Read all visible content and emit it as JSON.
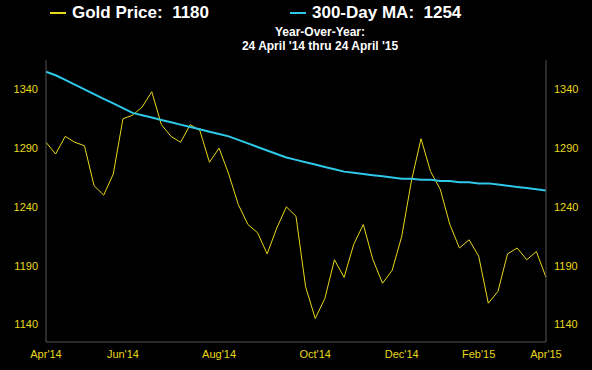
{
  "chart_data": {
    "type": "line",
    "subtitle": [
      "Year-Over-Year:",
      "24 April '14 thru 24 April '15"
    ],
    "categories": [
      "Apr'14",
      null,
      null,
      null,
      null,
      null,
      null,
      null,
      "Jun'14",
      null,
      null,
      null,
      null,
      null,
      null,
      null,
      null,
      null,
      "Aug'14",
      null,
      null,
      null,
      null,
      null,
      null,
      null,
      null,
      null,
      "Oct'14",
      null,
      null,
      null,
      null,
      null,
      null,
      null,
      null,
      "Dec'14",
      null,
      null,
      null,
      null,
      null,
      null,
      null,
      "Feb'15",
      null,
      null,
      null,
      null,
      null,
      null,
      "Apr'15"
    ],
    "series": [
      {
        "name": "Gold Price",
        "color": "#e8d81a",
        "values": [
          1295,
          1285,
          1300,
          1295,
          1292,
          1258,
          1250,
          1268,
          1315,
          1318,
          1325,
          1338,
          1310,
          1300,
          1295,
          1310,
          1305,
          1278,
          1290,
          1268,
          1242,
          1225,
          1218,
          1200,
          1222,
          1240,
          1232,
          1172,
          1145,
          1162,
          1195,
          1180,
          1208,
          1225,
          1195,
          1175,
          1186,
          1215,
          1262,
          1298,
          1270,
          1255,
          1225,
          1205,
          1212,
          1198,
          1158,
          1168,
          1200,
          1205,
          1195,
          1202,
          1180
        ]
      },
      {
        "name": "300-Day MA",
        "color": "#2ec8e8",
        "values": [
          1355,
          1352,
          1348,
          1344,
          1340,
          1336,
          1332,
          1328,
          1324,
          1320,
          1318,
          1316,
          1314,
          1312,
          1310,
          1308,
          1306,
          1304,
          1302,
          1300,
          1297,
          1294,
          1291,
          1288,
          1285,
          1282,
          1280,
          1278,
          1276,
          1274,
          1272,
          1270,
          1269,
          1268,
          1267,
          1266,
          1265,
          1264,
          1264,
          1263,
          1263,
          1262,
          1262,
          1261,
          1261,
          1260,
          1260,
          1259,
          1258,
          1257,
          1256,
          1255,
          1254
        ]
      }
    ],
    "ylim": [
      1125,
      1365
    ],
    "yticks": [
      1140,
      1190,
      1240,
      1290,
      1340
    ],
    "grid": false,
    "legend": "top"
  }
}
